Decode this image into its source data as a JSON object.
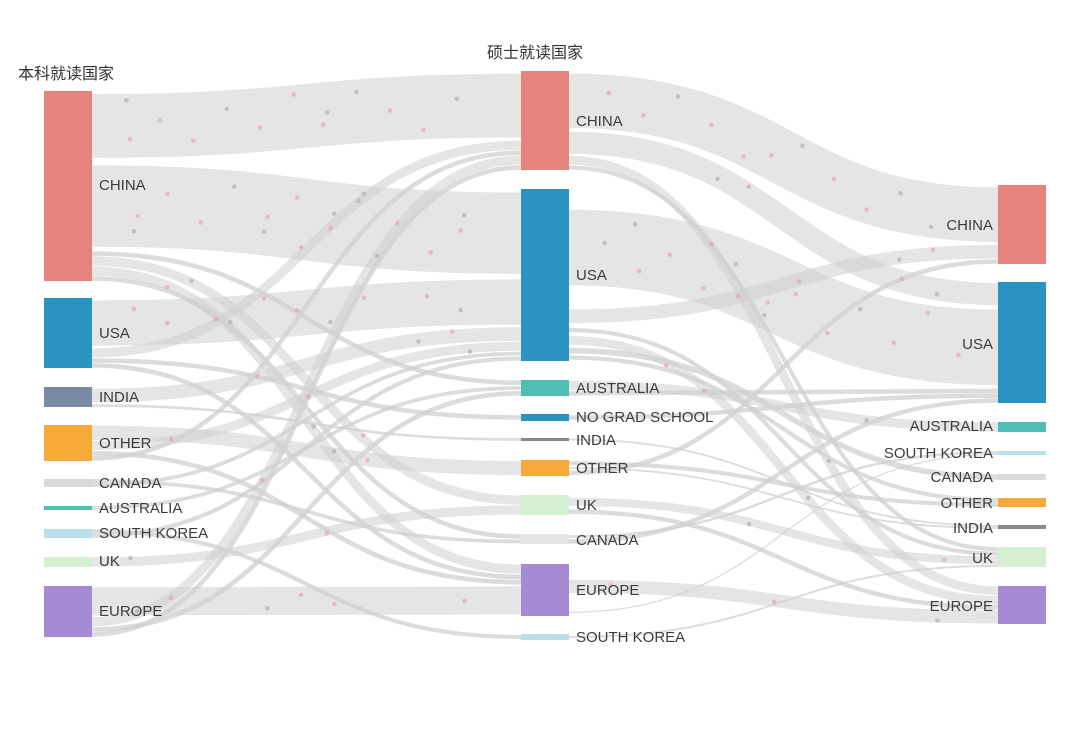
{
  "columns": [
    {
      "key": "undergrad",
      "title": "本科就读国家"
    },
    {
      "key": "grad",
      "title": "硕士就读国家"
    },
    {
      "key": "current",
      "title": ""
    }
  ],
  "nodes": {
    "undergrad": [
      {
        "id": "u_china",
        "label": "CHINA",
        "color": "#e8827c",
        "value": 38
      },
      {
        "id": "u_usa",
        "label": "USA",
        "color": "#2b93c2",
        "value": 14
      },
      {
        "id": "u_india",
        "label": "INDIA",
        "color": "#7b8aa3",
        "value": 4
      },
      {
        "id": "u_other",
        "label": "OTHER",
        "color": "#f4a939",
        "value": 7
      },
      {
        "id": "u_canada",
        "label": "CANADA",
        "color": "#d9d9d9",
        "value": 2
      },
      {
        "id": "u_australia",
        "label": "AUSTRALIA",
        "color": "#4ebfb4",
        "value": 1
      },
      {
        "id": "u_korea",
        "label": "SOUTH KOREA",
        "color": "#b8dfe8",
        "value": 2
      },
      {
        "id": "u_uk",
        "label": "UK",
        "color": "#d5efd3",
        "value": 2
      },
      {
        "id": "u_europe",
        "label": "EUROPE",
        "color": "#a68bd4",
        "value": 10
      }
    ],
    "grad": [
      {
        "id": "g_china",
        "label": "CHINA",
        "color": "#e8827c",
        "value": 20
      },
      {
        "id": "g_usa",
        "label": "USA",
        "color": "#2b93c2",
        "value": 35
      },
      {
        "id": "g_australia",
        "label": "AUSTRALIA",
        "color": "#4ebfb4",
        "value": 3
      },
      {
        "id": "g_nograd",
        "label": "NO GRAD SCHOOL",
        "color": "#2b93c2",
        "value": 1
      },
      {
        "id": "g_india",
        "label": "INDIA",
        "color": "#8a8a8a",
        "value": 0.5
      },
      {
        "id": "g_other",
        "label": "OTHER",
        "color": "#f4a939",
        "value": 3
      },
      {
        "id": "g_uk",
        "label": "UK",
        "color": "#d5efd3",
        "value": 4
      },
      {
        "id": "g_canada",
        "label": "CANADA",
        "color": "#e4e4e4",
        "value": 2
      },
      {
        "id": "g_europe",
        "label": "EUROPE",
        "color": "#a68bd4",
        "value": 10
      },
      {
        "id": "g_korea",
        "label": "SOUTH KOREA",
        "color": "#b8dfe8",
        "value": 1
      }
    ],
    "current": [
      {
        "id": "c_china",
        "label": "CHINA",
        "color": "#e8827c",
        "value": 16
      },
      {
        "id": "c_usa",
        "label": "USA",
        "color": "#2b93c2",
        "value": 24
      },
      {
        "id": "c_australia",
        "label": "AUSTRALIA",
        "color": "#4ebfb4",
        "value": 2
      },
      {
        "id": "c_korea",
        "label": "SOUTH KOREA",
        "color": "#b8dfe8",
        "value": 1
      },
      {
        "id": "c_canada",
        "label": "CANADA",
        "color": "#d9d9d9",
        "value": 1
      },
      {
        "id": "c_other",
        "label": "OTHER",
        "color": "#f4a939",
        "value": 2
      },
      {
        "id": "c_india",
        "label": "INDIA",
        "color": "#8a8a8a",
        "value": 1
      },
      {
        "id": "c_uk",
        "label": "UK",
        "color": "#d5efd3",
        "value": 4
      },
      {
        "id": "c_europe",
        "label": "EUROPE",
        "color": "#a68bd4",
        "value": 8
      }
    ]
  },
  "links": [
    {
      "source": "u_china",
      "target": "g_china",
      "value": 14
    },
    {
      "source": "u_china",
      "target": "g_usa",
      "value": 18
    },
    {
      "source": "u_china",
      "target": "g_australia",
      "value": 1
    },
    {
      "source": "u_china",
      "target": "g_uk",
      "value": 2
    },
    {
      "source": "u_china",
      "target": "g_europe",
      "value": 2
    },
    {
      "source": "u_china",
      "target": "g_canada",
      "value": 1
    },
    {
      "source": "u_usa",
      "target": "g_usa",
      "value": 10
    },
    {
      "source": "u_usa",
      "target": "g_china",
      "value": 2
    },
    {
      "source": "u_usa",
      "target": "g_nograd",
      "value": 1
    },
    {
      "source": "u_usa",
      "target": "g_europe",
      "value": 1
    },
    {
      "source": "u_india",
      "target": "g_usa",
      "value": 3
    },
    {
      "source": "u_india",
      "target": "g_india",
      "value": 0.5
    },
    {
      "source": "u_other",
      "target": "g_other",
      "value": 3
    },
    {
      "source": "u_other",
      "target": "g_usa",
      "value": 2
    },
    {
      "source": "u_other",
      "target": "g_europe",
      "value": 1
    },
    {
      "source": "u_other",
      "target": "g_china",
      "value": 1
    },
    {
      "source": "u_canada",
      "target": "g_canada",
      "value": 1
    },
    {
      "source": "u_canada",
      "target": "g_usa",
      "value": 1
    },
    {
      "source": "u_australia",
      "target": "g_australia",
      "value": 1
    },
    {
      "source": "u_korea",
      "target": "g_korea",
      "value": 1
    },
    {
      "source": "u_korea",
      "target": "g_usa",
      "value": 1
    },
    {
      "source": "u_uk",
      "target": "g_uk",
      "value": 2
    },
    {
      "source": "u_europe",
      "target": "g_europe",
      "value": 6
    },
    {
      "source": "u_europe",
      "target": "g_china",
      "value": 2
    },
    {
      "source": "u_europe",
      "target": "g_australia",
      "value": 1
    },
    {
      "source": "u_europe",
      "target": "g_china",
      "value": 1
    },
    {
      "source": "g_china",
      "target": "c_china",
      "value": 12
    },
    {
      "source": "g_china",
      "target": "c_usa",
      "value": 5
    },
    {
      "source": "g_china",
      "target": "c_europe",
      "value": 2
    },
    {
      "source": "g_china",
      "target": "c_uk",
      "value": 1
    },
    {
      "source": "g_usa",
      "target": "c_usa",
      "value": 17
    },
    {
      "source": "g_usa",
      "target": "c_china",
      "value": 3
    },
    {
      "source": "g_usa",
      "target": "c_uk",
      "value": 1
    },
    {
      "source": "g_usa",
      "target": "c_europe",
      "value": 2
    },
    {
      "source": "g_usa",
      "target": "c_canada",
      "value": 1
    },
    {
      "source": "g_usa",
      "target": "c_other",
      "value": 1
    },
    {
      "source": "g_australia",
      "target": "c_australia",
      "value": 2
    },
    {
      "source": "g_australia",
      "target": "c_usa",
      "value": 1
    },
    {
      "source": "g_nograd",
      "target": "c_usa",
      "value": 1
    },
    {
      "source": "g_india",
      "target": "c_india",
      "value": 0.5
    },
    {
      "source": "g_other",
      "target": "c_other",
      "value": 1
    },
    {
      "source": "g_other",
      "target": "c_india",
      "value": 0.5
    },
    {
      "source": "g_other",
      "target": "c_china",
      "value": 1
    },
    {
      "source": "g_uk",
      "target": "c_uk",
      "value": 2
    },
    {
      "source": "g_uk",
      "target": "c_europe",
      "value": 1
    },
    {
      "source": "g_canada",
      "target": "c_korea",
      "value": 1
    },
    {
      "source": "g_canada",
      "target": "c_usa",
      "value": 1
    },
    {
      "source": "g_europe",
      "target": "c_europe",
      "value": 3
    },
    {
      "source": "g_europe",
      "target": "c_korea",
      "value": 0.5
    },
    {
      "source": "g_korea",
      "target": "c_uk",
      "value": 0.5
    }
  ],
  "colors": {
    "link": "#d0d0d0",
    "dot_pink": "#e49a9a",
    "dot_grey": "#9aa7b0",
    "title": "#333333",
    "label": "#3c3c3c"
  }
}
